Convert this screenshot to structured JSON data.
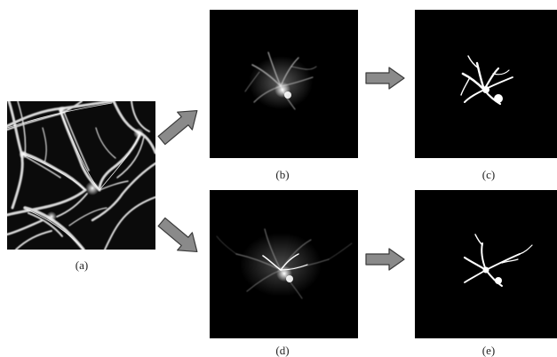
{
  "panels": [
    {
      "id": "a",
      "label": "(a)",
      "kind": "input-micrograph"
    },
    {
      "id": "b",
      "label": "(b)",
      "kind": "isolated-cell-grayscale"
    },
    {
      "id": "c",
      "label": "(c)",
      "kind": "binary-segmentation"
    },
    {
      "id": "d",
      "label": "(d)",
      "kind": "isolated-cell-grayscale"
    },
    {
      "id": "e",
      "label": "(e)",
      "kind": "binary-segmentation"
    }
  ],
  "arrows": [
    {
      "from": "a",
      "to": "b"
    },
    {
      "from": "a",
      "to": "d"
    },
    {
      "from": "b",
      "to": "c"
    },
    {
      "from": "d",
      "to": "e"
    }
  ],
  "colors": {
    "panel_background": "#000000",
    "arrow_fill": "#8a8a8a",
    "arrow_stroke": "#3a3a3a",
    "signal": "#ffffff"
  }
}
